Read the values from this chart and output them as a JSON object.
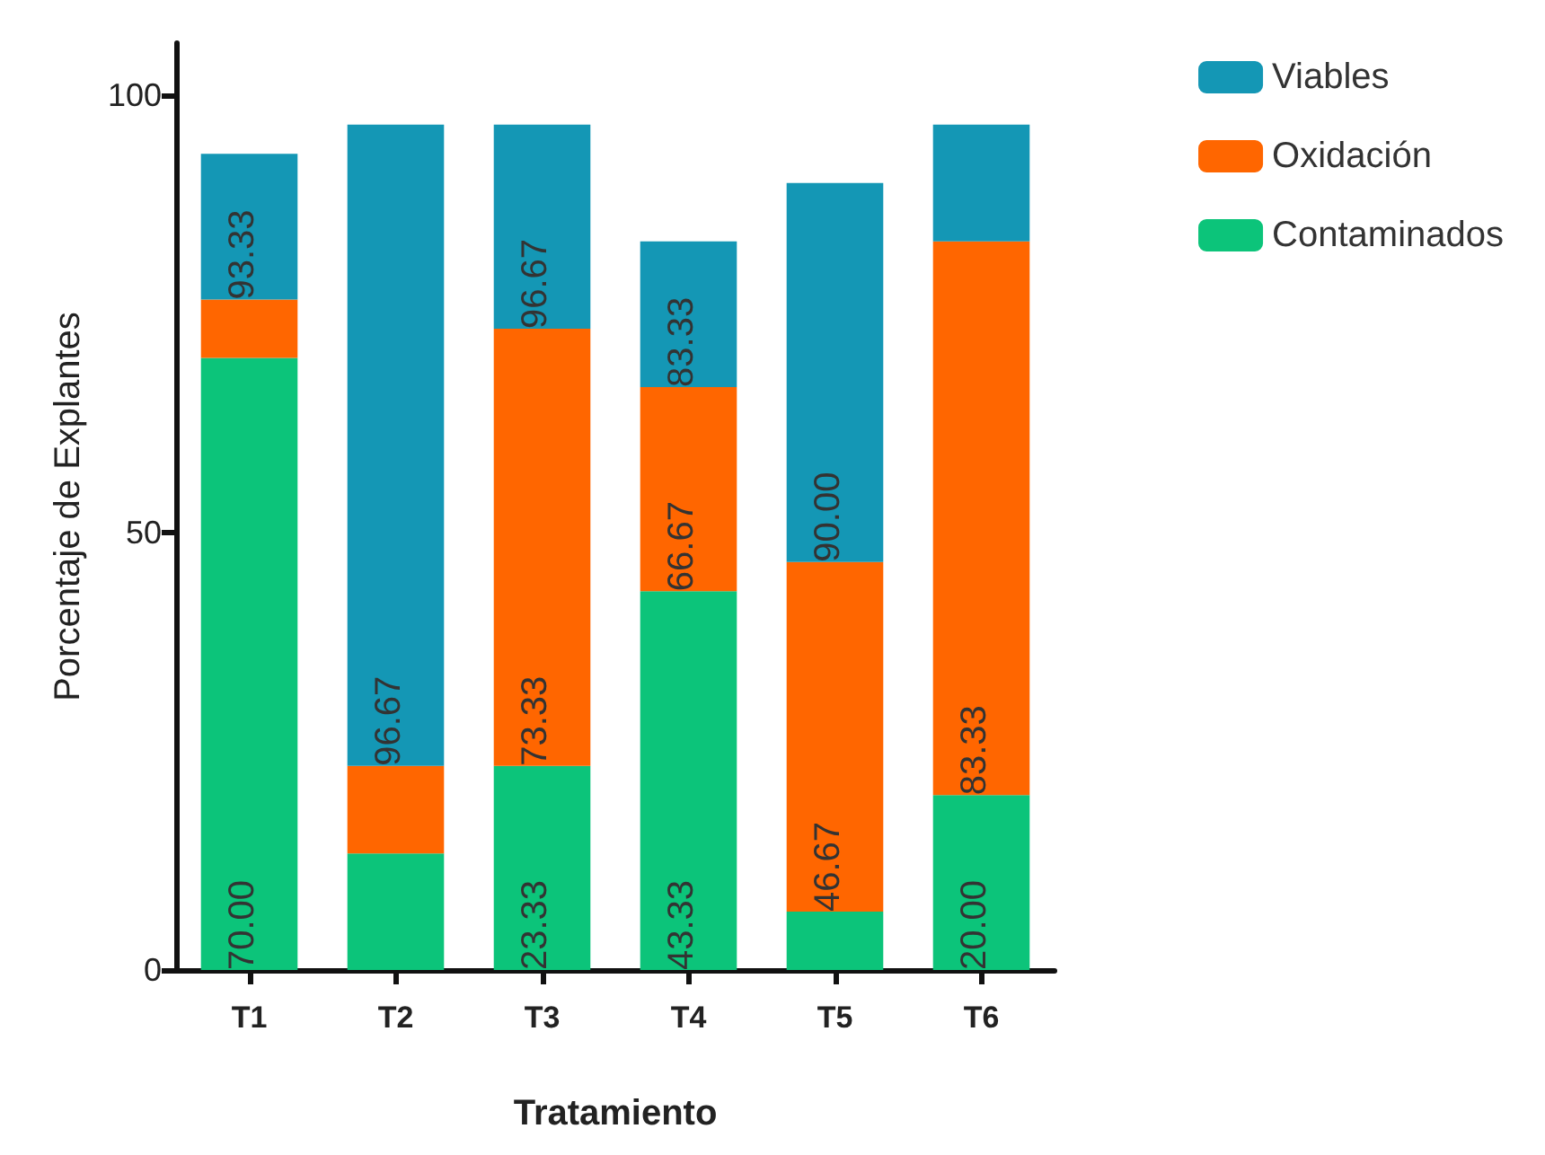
{
  "chart_data": {
    "type": "bar",
    "stacked": true,
    "xlabel": "Tratamiento",
    "ylabel": "Porcentaje de Explantes",
    "categories": [
      "T1",
      "T2",
      "T3",
      "T4",
      "T5",
      "T6"
    ],
    "ylim": [
      0,
      106
    ],
    "yticks": [
      0,
      50,
      100
    ],
    "grid": false,
    "legend": "top right",
    "series": [
      {
        "name": "Contaminados",
        "color": "#0cc47a",
        "values": [
          70,
          13.33,
          23.33,
          43.33,
          6.67,
          20
        ]
      },
      {
        "name": "Oxidación",
        "color": "#ff6600",
        "values": [
          6.67,
          10,
          50,
          23.34,
          40,
          63.33
        ]
      },
      {
        "name": "Viables",
        "color": "#1497b5",
        "values": [
          16.66,
          73.34,
          23.34,
          16.66,
          43.33,
          13.34
        ]
      }
    ],
    "annotations": [
      {
        "text": "70.00",
        "x": "T1",
        "y": 0
      },
      {
        "text": "93.33",
        "x": "T1",
        "y": 76.67
      },
      {
        "text": "96.67",
        "x": "T2",
        "y": 23.33
      },
      {
        "text": "23.33",
        "x": "T3",
        "y": 0
      },
      {
        "text": "73.33",
        "x": "T3",
        "y": 23.33
      },
      {
        "text": "96.67",
        "x": "T3",
        "y": 73.33
      },
      {
        "text": "43.33",
        "x": "T4",
        "y": 0
      },
      {
        "text": "66.67",
        "x": "T4",
        "y": 43.33
      },
      {
        "text": "83.33",
        "x": "T4",
        "y": 66.67
      },
      {
        "text": "46.67",
        "x": "T5",
        "y": 6.67
      },
      {
        "text": "90.00",
        "x": "T5",
        "y": 46.67
      },
      {
        "text": "20.00",
        "x": "T6",
        "y": 0
      },
      {
        "text": "83.33",
        "x": "T6",
        "y": 20
      }
    ]
  }
}
